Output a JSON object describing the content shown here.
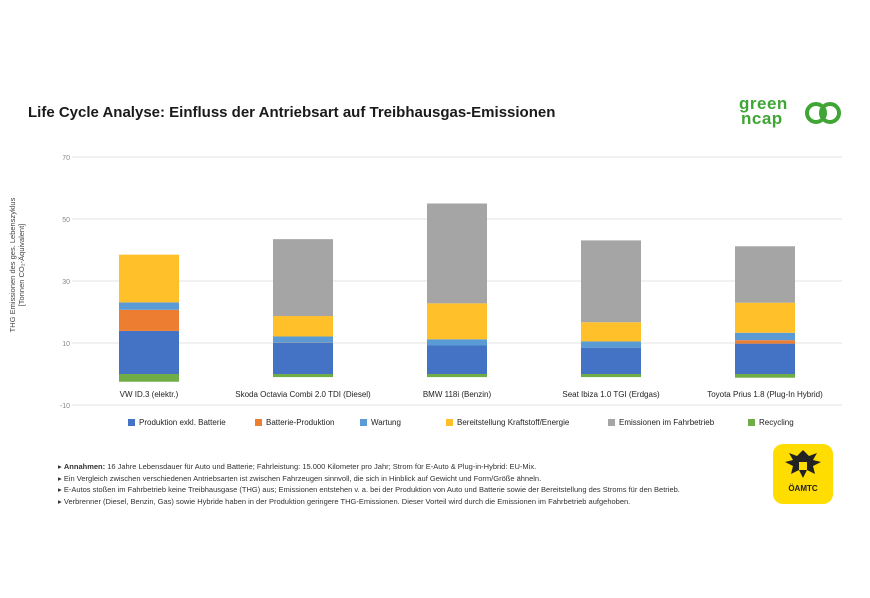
{
  "title": "Life Cycle Analyse: Einfluss der Antriebsart auf Treibhausgas-Emissionen",
  "logo": {
    "line1": "green",
    "line2": "ncap"
  },
  "oeamtc_logo_text": "ÖAMTC",
  "colors": {
    "production": "#4472c4",
    "battery": "#ed7d31",
    "maintenance": "#5b9bd5",
    "fuel": "#ffc02a",
    "operation": "#a5a5a5",
    "recycling": "#70ad47"
  },
  "chart_data": {
    "type": "bar",
    "stacked": true,
    "ylabel_line1": "THG Emissionen des ges. Lebenszyklus",
    "ylabel_line2": "[Tonnen CO₂-Äquivalent]",
    "ylim": [
      -10,
      70
    ],
    "yticks": [
      "70",
      "50",
      "30",
      "10",
      "-10"
    ],
    "ytick_values": [
      70,
      50,
      30,
      10,
      -10
    ],
    "grid": true,
    "legend_position": "bottom",
    "categories": [
      "VW ID.3 (elektr.)",
      "Skoda Octavia Combi 2.0 TDI (Diesel)",
      "BMW 118i (Benzin)",
      "Seat Ibiza 1.0 TGI (Erdgas)",
      "Toyota Prius 1.8 (Plug-In Hybrid)"
    ],
    "series": [
      {
        "name": "Produktion exkl. Batterie",
        "color": "#4472c4",
        "values": [
          13.9,
          10.0,
          9.2,
          8.5,
          9.8
        ]
      },
      {
        "name": "Batterie-Produktion",
        "color": "#ed7d31",
        "values": [
          6.8,
          0.1,
          0.0,
          0.0,
          1.1
        ]
      },
      {
        "name": "Wartung",
        "color": "#5b9bd5",
        "values": [
          2.4,
          2.0,
          2.0,
          2.0,
          2.4
        ]
      },
      {
        "name": "Bereitstellung Kraftstoff/Energie",
        "color": "#ffc02a",
        "values": [
          15.4,
          6.6,
          11.6,
          6.2,
          9.7
        ]
      },
      {
        "name": "Emissionen im Fahrbetrieb",
        "color": "#a5a5a5",
        "values": [
          0.0,
          24.8,
          32.2,
          26.4,
          18.2
        ]
      },
      {
        "name": "Recycling",
        "color": "#70ad47",
        "values": [
          -2.5,
          -1.0,
          -1.0,
          -1.0,
          -1.2
        ]
      }
    ]
  },
  "notes": {
    "line1_bold": "Annahmen:",
    "line1": " 16 Jahre Lebensdauer für Auto und Batterie; Fahrleistung: 15.000 Kilometer pro Jahr; Strom für E-Auto & Plug-in-Hybrid: EU-Mix.",
    "line2": "Ein Vergleich zwischen verschiedenen Antriebsarten ist zwischen Fahrzeugen sinnvoll, die sich in Hinblick auf Gewicht und Form/Größe ähneln.",
    "line3": "E-Autos stoßen im Fahrbetrieb keine Treibhausgase (THG) aus; Emissionen entstehen v. a. bei der Produktion von Auto und Batterie sowie der Bereitstellung des Stroms für den Betrieb.",
    "line4": "Verbrenner (Diesel, Benzin, Gas) sowie Hybride haben in der Produktion geringere THG-Emissionen. Dieser Vorteil wird durch die Emissionen im Fahrbetrieb aufgehoben."
  }
}
